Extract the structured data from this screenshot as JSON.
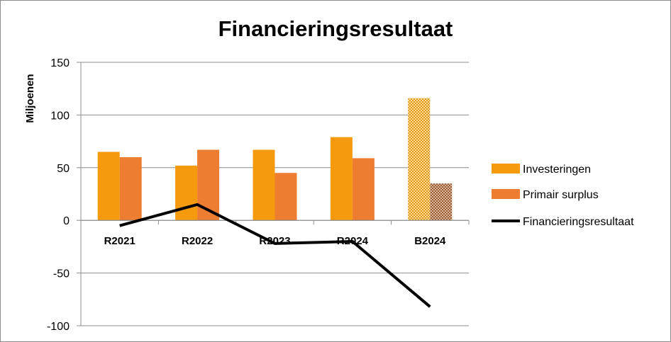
{
  "chart_data": {
    "type": "bar",
    "title": "Financieringsresultaat",
    "ylabel": "Miljoenen",
    "xlabel": "",
    "categories": [
      "R2021",
      "R2022",
      "R2023",
      "R2024",
      "B2024"
    ],
    "ylim": [
      -100,
      150
    ],
    "yticks": [
      150,
      100,
      50,
      0,
      -50,
      -100
    ],
    "grid": true,
    "legend_position": "right",
    "series": [
      {
        "name": "Investeringen",
        "type": "bar",
        "color": "#f59a0c",
        "values": [
          65,
          52,
          67,
          79,
          116
        ]
      },
      {
        "name": "Primair surplus",
        "type": "bar",
        "color": "#ed7d31",
        "values": [
          60,
          67,
          45,
          59,
          35
        ]
      },
      {
        "name": "Financieringsresultaat",
        "type": "line",
        "color": "#000000",
        "values": [
          -5,
          15,
          -22,
          -20,
          -82
        ]
      }
    ],
    "patterned_category": "B2024"
  }
}
